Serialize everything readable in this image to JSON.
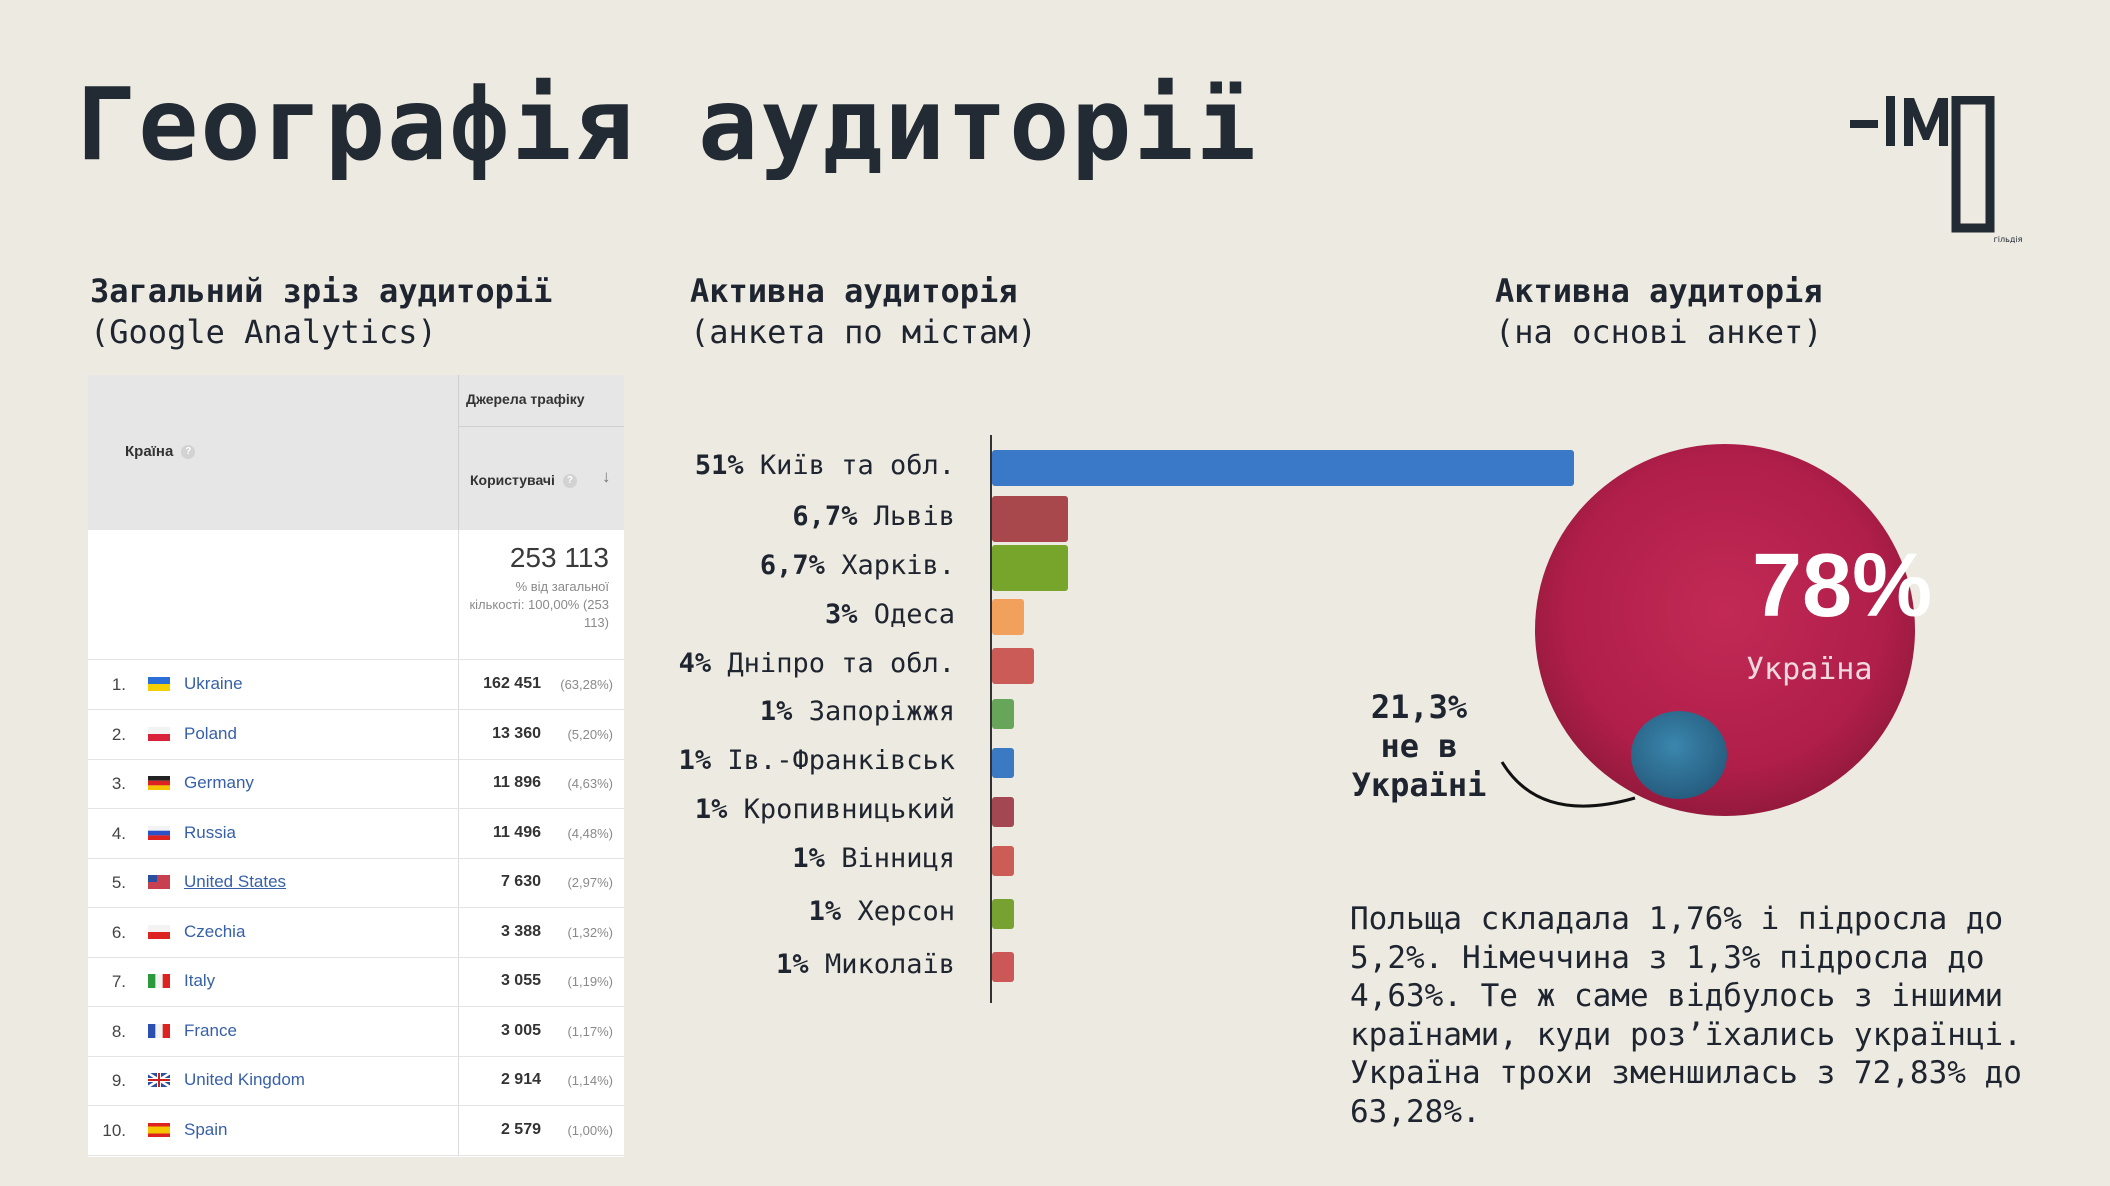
{
  "title": "Географія аудиторії",
  "logo_text": "-ІМ",
  "logo_sub": "гільдія",
  "sections": {
    "analytics": {
      "line1": "Загальний зріз аудиторії",
      "line2": "(Google Analytics)"
    },
    "cities": {
      "line1": "Активна аудиторія",
      "line2": "(анкета по містам)"
    },
    "survey": {
      "line1": "Активна аудиторія",
      "line2": "(на основі анкет)"
    }
  },
  "ga_table": {
    "col_country": "Країна",
    "col_group": "Джерела трафіку",
    "col_users": "Користувачі",
    "help_glyph": "?",
    "sort_glyph": "↓",
    "total": "253 113",
    "total_note": "% від загальної кількості: 100,00% (253 113)",
    "rows": [
      {
        "idx": "1.",
        "country": "Ukraine",
        "users": "162 451",
        "pct": "(63,28%)"
      },
      {
        "idx": "2.",
        "country": "Poland",
        "users": "13 360",
        "pct": "(5,20%)"
      },
      {
        "idx": "3.",
        "country": "Germany",
        "users": "11 896",
        "pct": "(4,63%)"
      },
      {
        "idx": "4.",
        "country": "Russia",
        "users": "11 496",
        "pct": "(4,48%)"
      },
      {
        "idx": "5.",
        "country": "United States",
        "users": "7 630",
        "pct": "(2,97%)"
      },
      {
        "idx": "6.",
        "country": "Czechia",
        "users": "3 388",
        "pct": "(1,32%)"
      },
      {
        "idx": "7.",
        "country": "Italy",
        "users": "3 055",
        "pct": "(1,19%)"
      },
      {
        "idx": "8.",
        "country": "France",
        "users": "3 005",
        "pct": "(1,17%)"
      },
      {
        "idx": "9.",
        "country": "United Kingdom",
        "users": "2 914",
        "pct": "(1,14%)"
      },
      {
        "idx": "10.",
        "country": "Spain",
        "users": "2 579",
        "pct": "(1,00%)"
      }
    ]
  },
  "chart_data": [
    {
      "type": "bar",
      "orientation": "horizontal",
      "categories": [
        "Київ та обл.",
        "Львів",
        "Харків.",
        "Одеса",
        "Дніпро та обл.",
        "Запоріжжя",
        "Ів.-Франківськ",
        "Кропивницький",
        "Вінниця",
        "Херсон",
        "Миколаїв"
      ],
      "labels": [
        "51%",
        "6,7%",
        "6,7%",
        "3%",
        "4%",
        "1%",
        "1%",
        "1%",
        "1%",
        "1%",
        "1%"
      ],
      "values": [
        51,
        6.7,
        6.7,
        3,
        4,
        1,
        1,
        1,
        1,
        1,
        1
      ],
      "colors": [
        "#2a6fc4",
        "#a23a40",
        "#6d9e1c",
        "#f29a50",
        "#c84e4a",
        "#5a9e4e",
        "#2b6fbf",
        "#9c3a46",
        "#c9504a",
        "#6d9a22",
        "#c84a4a"
      ]
    },
    {
      "type": "pie",
      "slices": [
        {
          "label": "Україна",
          "value_label": "78%",
          "value": 78,
          "color": "#b0204a"
        },
        {
          "label": "не в Україні",
          "value_label": "21,3%",
          "value": 21.3,
          "color": "#2f6f95"
        }
      ]
    }
  ],
  "outside_line1": "21,3%",
  "outside_line2": "не в",
  "outside_line3": "Україні",
  "paragraph": "Польща складала 1,76% і підросла до 5,2%. Німеччина з 1,3% підросла до 4,63%. Те ж саме відбулось з іншими країнами, куди роз’їхались українці. Україна трохи зменшилась з 72,83% до 63,28%."
}
